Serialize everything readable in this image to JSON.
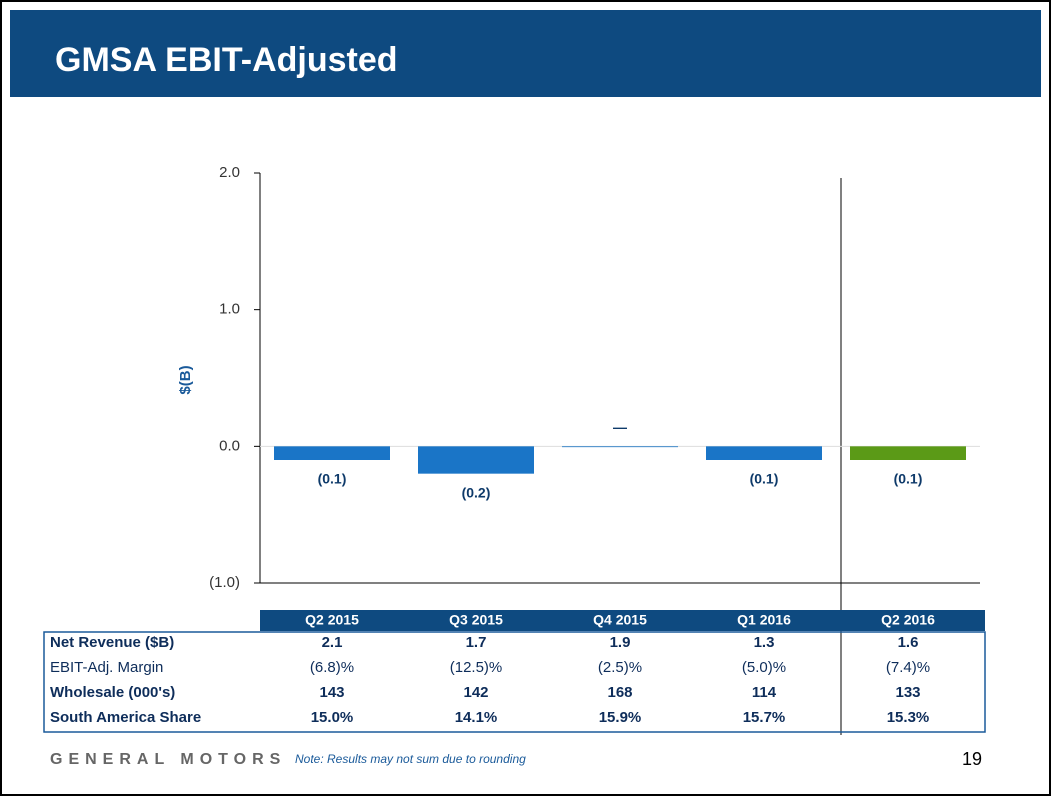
{
  "chart_data": {
    "type": "bar",
    "title": "GMSA EBIT-Adjusted",
    "y_label": "$(B)",
    "categories": [
      "Q2 2015",
      "Q3 2015",
      "Q4 2015",
      "Q1 2016",
      "Q2 2016"
    ],
    "values": [
      -0.1,
      -0.2,
      0,
      -0.1,
      -0.1
    ],
    "value_labels": [
      "(0.1)",
      "(0.2)",
      "—",
      "(0.1)",
      "(0.1)"
    ],
    "colors": [
      "#1a75c7",
      "#1a75c7",
      "#1a75c7",
      "#1a75c7",
      "#5b9a17"
    ],
    "ylim": [
      -1,
      2
    ],
    "yticks": [
      {
        "value": 2,
        "label": "2.0"
      },
      {
        "value": 1,
        "label": "1.0"
      },
      {
        "value": 0,
        "label": "0.0"
      },
      {
        "value": -1,
        "label": "(1.0)"
      }
    ]
  },
  "table": {
    "rows": [
      {
        "label": "Net Revenue ($B)",
        "values": [
          "2.1",
          "1.7",
          "1.9",
          "1.3",
          "1.6"
        ]
      },
      {
        "label": "EBIT-Adj. Margin",
        "values": [
          "(6.8)%",
          "(12.5)%",
          "(2.5)%",
          "(5.0)%",
          "(7.4)%"
        ]
      },
      {
        "label": "Wholesale (000's)",
        "values": [
          "143",
          "142",
          "168",
          "114",
          "133"
        ]
      },
      {
        "label": "South America Share",
        "values": [
          "15.0%",
          "14.1%",
          "15.9%",
          "15.7%",
          "15.3%"
        ]
      }
    ]
  },
  "footer": {
    "brand": "GENERAL MOTORS",
    "note": "Note: Results may not sum due to rounding",
    "page": "19"
  }
}
